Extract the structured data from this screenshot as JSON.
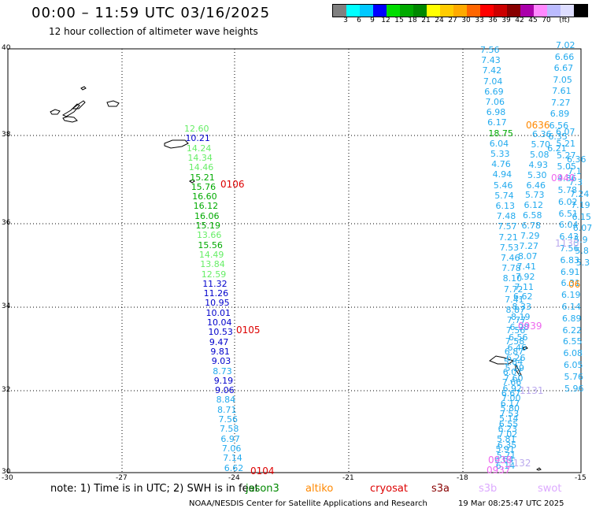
{
  "header": {
    "title": "00:00 – 11:59 UTC 03/16/2025",
    "subtitle": "12 hour collection of altimeter wave heights"
  },
  "colorbar": {
    "colors": [
      "#808080",
      "#00ffff",
      "#00c8ff",
      "#0000ff",
      "#00dd00",
      "#00aa00",
      "#008800",
      "#ffff00",
      "#ffcc00",
      "#ffaa00",
      "#ff6600",
      "#ff0000",
      "#cc0000",
      "#880000",
      "#aa00aa",
      "#ff88ff",
      "#bbbbff",
      "#ddddff",
      "#000000"
    ],
    "labels": [
      "3",
      "6",
      "9",
      "12",
      "15",
      "18",
      "21",
      "24",
      "27",
      "30",
      "33",
      "36",
      "39",
      "42",
      "45",
      "70",
      "(ft)"
    ]
  },
  "axes": {
    "lat_labels": [
      "40",
      "38",
      "36",
      "34",
      "32",
      "30"
    ],
    "lon_labels": [
      "-30",
      "-27",
      "-24",
      "-21",
      "-18",
      "-15"
    ]
  },
  "coast_label": "",
  "track_a": {
    "color_hint": "mixed",
    "values": [
      {
        "v": "12.60",
        "c": "#66ee66"
      },
      {
        "v": "10.21",
        "c": "#0000cc"
      },
      {
        "v": "14.24",
        "c": "#66ee66"
      },
      {
        "v": "14.34",
        "c": "#66ee66"
      },
      {
        "v": "14.46",
        "c": "#66ee66"
      },
      {
        "v": "15.21",
        "c": "#00aa00"
      },
      {
        "v": "15.76",
        "c": "#00aa00"
      },
      {
        "v": "16.60",
        "c": "#00aa00"
      },
      {
        "v": "16.12",
        "c": "#00aa00"
      },
      {
        "v": "16.06",
        "c": "#00aa00"
      },
      {
        "v": "15.19",
        "c": "#00aa00"
      },
      {
        "v": "13.66",
        "c": "#66ee66"
      },
      {
        "v": "15.56",
        "c": "#00aa00"
      },
      {
        "v": "14.49",
        "c": "#66ee66"
      },
      {
        "v": "13.84",
        "c": "#66ee66"
      },
      {
        "v": "12.59",
        "c": "#66ee66"
      },
      {
        "v": "11.32",
        "c": "#0000cc"
      },
      {
        "v": "11.26",
        "c": "#0000cc"
      },
      {
        "v": "10.95",
        "c": "#0000cc"
      },
      {
        "v": "10.01",
        "c": "#0000cc"
      },
      {
        "v": "10.04",
        "c": "#0000cc"
      },
      {
        "v": "10.53",
        "c": "#0000cc"
      },
      {
        "v": "9.47",
        "c": "#0000cc"
      },
      {
        "v": "9.81",
        "c": "#0000cc"
      },
      {
        "v": "9.03",
        "c": "#0000cc"
      },
      {
        "v": "8.73",
        "c": "#22aaee"
      },
      {
        "v": "9.19",
        "c": "#0000cc"
      },
      {
        "v": "9.06",
        "c": "#0000cc"
      },
      {
        "v": "8.84",
        "c": "#22aaee"
      },
      {
        "v": "8.71",
        "c": "#22aaee"
      },
      {
        "v": "7.56",
        "c": "#22aaee"
      },
      {
        "v": "7.58",
        "c": "#22aaee"
      },
      {
        "v": "6.97",
        "c": "#22aaee"
      },
      {
        "v": "7.06",
        "c": "#22aaee"
      },
      {
        "v": "7.14",
        "c": "#22aaee"
      },
      {
        "v": "6.62",
        "c": "#22aaee"
      }
    ]
  },
  "track_b": {
    "values": [
      "7.56",
      "7.43",
      "7.42",
      "7.04",
      "6.69",
      "7.06",
      "6.98",
      "6.17",
      "18.75",
      "6.04",
      "5.33",
      "4.76",
      "4.94",
      "5.46",
      "5.74",
      "6.13",
      "7.48",
      "7.57",
      "7.21",
      "7.53",
      "7.46",
      "7.78",
      "8.10",
      "7.72",
      "7.41",
      "8.87",
      "7.77",
      "7.56",
      "7.58",
      "6.87",
      "5.84",
      "6.07",
      "7.66",
      "6.67",
      "6.17",
      "7.53",
      "6.55",
      "7.02",
      "6.35",
      "5.71",
      "6.14"
    ]
  },
  "track_c": {
    "values": [
      "6.36",
      "5.70",
      "5.08",
      "4.93",
      "5.30",
      "6.46",
      "5.73",
      "6.12",
      "6.58",
      "6.78",
      "7.29",
      "7.27",
      "8.07",
      "7.41",
      "7.92",
      "7.11",
      "6.62",
      "8.33",
      "8.19",
      "6.98",
      "6.56",
      "6.46",
      "6.26",
      "5.29",
      "7.60",
      "6.92",
      "7.00",
      "5.80",
      "5.14",
      "6.23",
      "5.81",
      "5.91",
      "6.64"
    ]
  },
  "track_d": {
    "values": [
      "6.07",
      "5.21",
      "5.27",
      "5.05",
      "4.86",
      "5.78",
      "6.02",
      "6.51",
      "6.04",
      "6.43",
      "7.56",
      "6.83",
      "6.91",
      "6.31",
      "6.19",
      "6.14",
      "6.89",
      "6.22",
      "6.55",
      "6.08",
      "6.05",
      "5.76",
      "5.96"
    ]
  },
  "track_e": {
    "values": [
      "7.02",
      "6.66",
      "6.67",
      "7.05",
      "7.61",
      "7.27",
      "6.89",
      "6.56",
      "6.35",
      "6.21",
      "6.36",
      "7.1",
      "7.3",
      "7.24",
      "7.19",
      "6.15",
      "6.07",
      "5.9",
      "5.8",
      "5.3"
    ]
  },
  "pass_labels": [
    {
      "text": "0106",
      "color": "#dd0000"
    },
    {
      "text": "0105",
      "color": "#dd0000"
    },
    {
      "text": "0104",
      "color": "#dd0000"
    },
    {
      "text": "0636",
      "color": "#ff8800"
    },
    {
      "text": "0940",
      "color": "#ee66ee"
    },
    {
      "text": "1130",
      "color": "#bbaaee"
    },
    {
      "text": "06",
      "color": "#ff8800"
    },
    {
      "text": "0939",
      "color": "#ee66ee"
    },
    {
      "text": "1131",
      "color": "#bbaaee"
    },
    {
      "text": "0938",
      "color": "#ee66ee"
    },
    {
      "text": "0937",
      "color": "#ee66ee"
    },
    {
      "text": "1132",
      "color": "#bbaaee"
    }
  ],
  "footer": {
    "note": "note: 1) Time is in UTC; 2) SWH is in feet",
    "satellites": [
      {
        "name": "jason3",
        "color": "#008800"
      },
      {
        "name": "altiko",
        "color": "#ff8800"
      },
      {
        "name": "cryosat",
        "color": "#dd0000"
      },
      {
        "name": "s3a",
        "color": "#880000"
      },
      {
        "name": "s3b",
        "color": "#ddaaff"
      },
      {
        "name": "swot",
        "color": "#ddaaff"
      }
    ],
    "credit": "NOAA/NESDIS Center for Satellite Applications and Research",
    "timestamp": "19 Mar 08:25:47 UTC 2025"
  }
}
